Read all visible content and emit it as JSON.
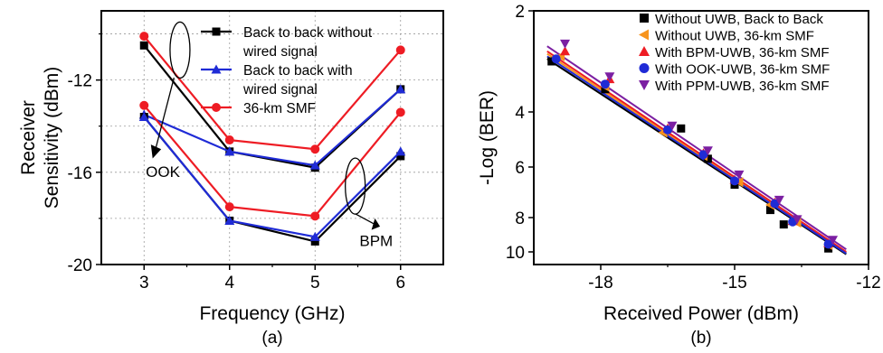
{
  "chart_data": [
    {
      "type": "line",
      "panel_label": "(a)",
      "xlabel": "Frequency (GHz)",
      "ylabel_line1": "Receiver",
      "ylabel_line2": "Sensitivity (dBm)",
      "xlim": [
        2.5,
        6.5
      ],
      "ylim": [
        -20,
        -9
      ],
      "x_ticks": [
        3,
        4,
        5,
        6
      ],
      "y_ticks": [
        -12,
        -16,
        -20
      ],
      "grid": true,
      "legend_position": "top-right",
      "series": [
        {
          "name": "Back to back without wired signal",
          "name_line1": "Back to back without",
          "name_line2": "wired signal",
          "color": "#000000",
          "marker": "square",
          "group": "OOK",
          "x": [
            3,
            4,
            5,
            6
          ],
          "y": [
            -10.5,
            -15.1,
            -15.8,
            -12.4
          ]
        },
        {
          "name": "Back to back with wired signal",
          "name_line1": "Back to back with",
          "name_line2": "wired signal",
          "color": "#1f2bd6",
          "marker": "triangle",
          "group": "OOK",
          "x": [
            3,
            4,
            5,
            6
          ],
          "y": [
            -13.5,
            -15.1,
            -15.7,
            -12.4
          ]
        },
        {
          "name": "36-km SMF",
          "name_line1": "36-km SMF",
          "name_line2": "",
          "color": "#ee1c24",
          "marker": "circle",
          "group": "OOK",
          "x": [
            3,
            4,
            5,
            6
          ],
          "y": [
            -10.1,
            -14.6,
            -15.0,
            -10.7
          ]
        },
        {
          "name": "Back to back without wired signal",
          "color": "#000000",
          "marker": "square",
          "group": "BPM",
          "x": [
            3,
            4,
            5,
            6
          ],
          "y": [
            -13.6,
            -18.1,
            -19.0,
            -15.3
          ]
        },
        {
          "name": "Back to back with wired signal",
          "color": "#1f2bd6",
          "marker": "triangle",
          "group": "BPM",
          "x": [
            3,
            4,
            5,
            6
          ],
          "y": [
            -13.6,
            -18.1,
            -18.8,
            -15.1
          ]
        },
        {
          "name": "36-km SMF",
          "color": "#ee1c24",
          "marker": "circle",
          "group": "BPM",
          "x": [
            3,
            4,
            5,
            6
          ],
          "y": [
            -13.1,
            -17.5,
            -17.9,
            -13.4
          ]
        }
      ],
      "annotations": [
        {
          "text": "OOK"
        },
        {
          "text": "BPM"
        }
      ]
    },
    {
      "type": "scatter",
      "panel_label": "(b)",
      "xlabel": "Received Power (dBm)",
      "ylabel": "-Log (BER)",
      "xlim": [
        -19.5,
        -12
      ],
      "ylim": [
        2,
        10.4
      ],
      "y_scale": "reciprocal-like (compressed toward 10)",
      "x_ticks": [
        -18,
        -15,
        -12
      ],
      "y_ticks": [
        2,
        4,
        6,
        8,
        10
      ],
      "grid": false,
      "legend_position": "top-right",
      "series": [
        {
          "name": "Without UWB, Back to Back",
          "color": "#000000",
          "marker": "square",
          "fit_x": [
            -19.2,
            -12.5
          ],
          "fit_y": [
            2.95,
            10.15
          ],
          "x": [
            -19.1,
            -17.9,
            -16.2,
            -15.6,
            -15.0,
            -14.2,
            -13.9,
            -12.9
          ],
          "y": [
            3.0,
            3.55,
            4.6,
            5.7,
            6.7,
            7.7,
            8.4,
            9.8
          ]
        },
        {
          "name": "Without UWB, 36-km SMF",
          "color": "#f7941d",
          "marker": "triangle-left",
          "fit_x": [
            -19.2,
            -12.5
          ],
          "fit_y": [
            2.85,
            10.05
          ],
          "x": [
            -18.9,
            -17.9,
            -16.6,
            -15.7,
            -14.9,
            -14.2,
            -13.6,
            -12.9
          ],
          "y": [
            2.9,
            3.5,
            4.75,
            5.6,
            6.6,
            7.5,
            8.3,
            9.6
          ]
        },
        {
          "name": "With BPM-UWB, 36-km SMF",
          "color": "#ee1c24",
          "marker": "triangle",
          "fit_x": [
            -19.2,
            -12.5
          ],
          "fit_y": [
            2.8,
            10.0
          ],
          "x": [
            -18.8,
            -17.8,
            -16.5,
            -15.7,
            -15.0,
            -14.1,
            -13.7,
            -12.9
          ],
          "y": [
            2.8,
            3.35,
            4.6,
            5.5,
            6.5,
            7.4,
            8.2,
            9.5
          ]
        },
        {
          "name": "With OOK-UWB, 36-km SMF",
          "color": "#1f2bd6",
          "marker": "circle",
          "fit_x": [
            -19.2,
            -12.5
          ],
          "fit_y": [
            2.9,
            10.1
          ],
          "x": [
            -19.0,
            -17.9,
            -16.5,
            -15.7,
            -15.0,
            -14.1,
            -13.7,
            -12.9
          ],
          "y": [
            2.95,
            3.45,
            4.65,
            5.55,
            6.55,
            7.45,
            8.25,
            9.55
          ]
        },
        {
          "name": "With PPM-UWB, 36-km SMF",
          "color": "#7b1fa2",
          "marker": "triangle-down",
          "fit_x": [
            -19.2,
            -12.5
          ],
          "fit_y": [
            2.7,
            9.85
          ],
          "x": [
            -18.8,
            -17.8,
            -16.4,
            -15.6,
            -14.9,
            -14.0,
            -13.6,
            -12.8
          ],
          "y": [
            2.65,
            3.3,
            4.5,
            5.4,
            6.3,
            7.3,
            8.1,
            9.3
          ]
        }
      ]
    }
  ]
}
